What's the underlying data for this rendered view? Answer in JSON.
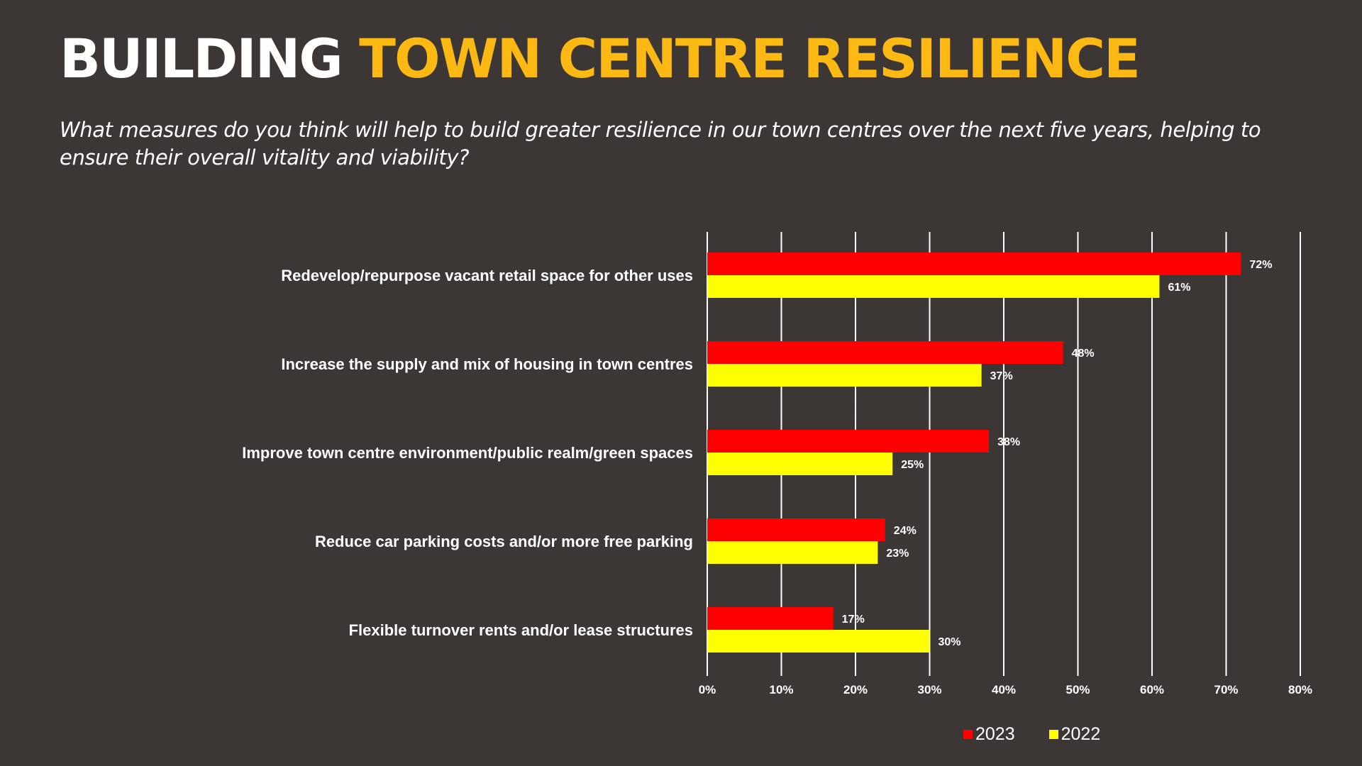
{
  "header": {
    "title_part1": "BUILDING",
    "title_part2": "TOWN CENTRE RESILIENCE",
    "subtitle": "What measures do you think will help to build greater resilience in our town centres over the next five years, helping to ensure their overall vitality and viability?"
  },
  "colors": {
    "background": "#3c3734",
    "title_accent": "#fcb913",
    "series_2023": "#ff0000",
    "series_2022": "#ffff00",
    "gridline": "#ffffff"
  },
  "chart_data": {
    "type": "bar",
    "orientation": "horizontal",
    "title": "",
    "xlabel": "",
    "ylabel": "",
    "categories": [
      "Redevelop/repurpose vacant retail space for other uses",
      "Increase the supply and mix of housing in town centres",
      "Improve town centre environment/public realm/green spaces",
      "Reduce car parking costs and/or more free parking",
      "Flexible turnover rents and/or lease structures"
    ],
    "series": [
      {
        "name": "2023",
        "color": "#ff0000",
        "values": [
          72,
          48,
          38,
          24,
          17
        ],
        "labels": [
          "72%",
          "48%",
          "38%",
          "24%",
          "17%"
        ]
      },
      {
        "name": "2022",
        "color": "#ffff00",
        "values": [
          61,
          37,
          25,
          23,
          30
        ],
        "labels": [
          "61%",
          "37%",
          "25%",
          "23%",
          "30%"
        ]
      }
    ],
    "xlim": [
      0,
      80
    ],
    "xticks": [
      0,
      10,
      20,
      30,
      40,
      50,
      60,
      70,
      80
    ],
    "xtick_labels": [
      "0%",
      "10%",
      "20%",
      "30%",
      "40%",
      "50%",
      "60%",
      "70%",
      "80%"
    ],
    "grid": "vertical",
    "legend_position": "bottom-right"
  }
}
